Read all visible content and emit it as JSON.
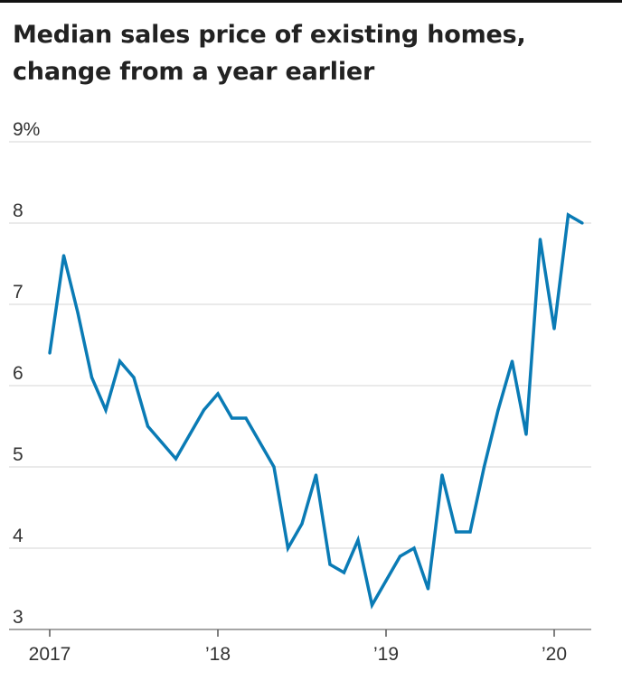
{
  "chart_data": {
    "type": "line",
    "title": "Median sales price of existing homes, change from a year earlier",
    "xlabel": "",
    "ylabel": "",
    "ylim": [
      3,
      9
    ],
    "y_ticks": [
      {
        "value": 9,
        "label": "9%"
      },
      {
        "value": 8,
        "label": "8"
      },
      {
        "value": 7,
        "label": "7"
      },
      {
        "value": 6,
        "label": "6"
      },
      {
        "value": 5,
        "label": "5"
      },
      {
        "value": 4,
        "label": "4"
      },
      {
        "value": 3,
        "label": "3"
      }
    ],
    "x_ticks": [
      {
        "value": "2017-01",
        "label": "2017"
      },
      {
        "value": "2018-01",
        "label": "’18"
      },
      {
        "value": "2019-01",
        "label": "’19"
      },
      {
        "value": "2020-01",
        "label": "’20"
      }
    ],
    "grid": true,
    "series": [
      {
        "color": "#0a7bb5",
        "x": [
          "2017-01",
          "2017-02",
          "2017-03",
          "2017-04",
          "2017-05",
          "2017-06",
          "2017-07",
          "2017-08",
          "2017-09",
          "2017-10",
          "2017-11",
          "2017-12",
          "2018-01",
          "2018-02",
          "2018-03",
          "2018-04",
          "2018-05",
          "2018-06",
          "2018-07",
          "2018-08",
          "2018-09",
          "2018-10",
          "2018-11",
          "2018-12",
          "2019-01",
          "2019-02",
          "2019-03",
          "2019-04",
          "2019-05",
          "2019-06",
          "2019-07",
          "2019-08",
          "2019-09",
          "2019-10",
          "2019-11",
          "2019-12",
          "2020-01",
          "2020-02",
          "2020-03"
        ],
        "values": [
          6.4,
          7.6,
          6.9,
          6.1,
          5.7,
          6.3,
          6.1,
          5.5,
          5.3,
          5.1,
          5.4,
          5.7,
          5.9,
          5.6,
          5.6,
          5.3,
          5.0,
          4.0,
          4.3,
          4.9,
          3.8,
          3.7,
          4.1,
          3.3,
          3.6,
          3.9,
          4.0,
          3.5,
          4.9,
          4.2,
          4.2,
          5.0,
          5.7,
          6.3,
          5.4,
          7.8,
          6.7,
          8.1,
          8.0
        ]
      }
    ]
  }
}
